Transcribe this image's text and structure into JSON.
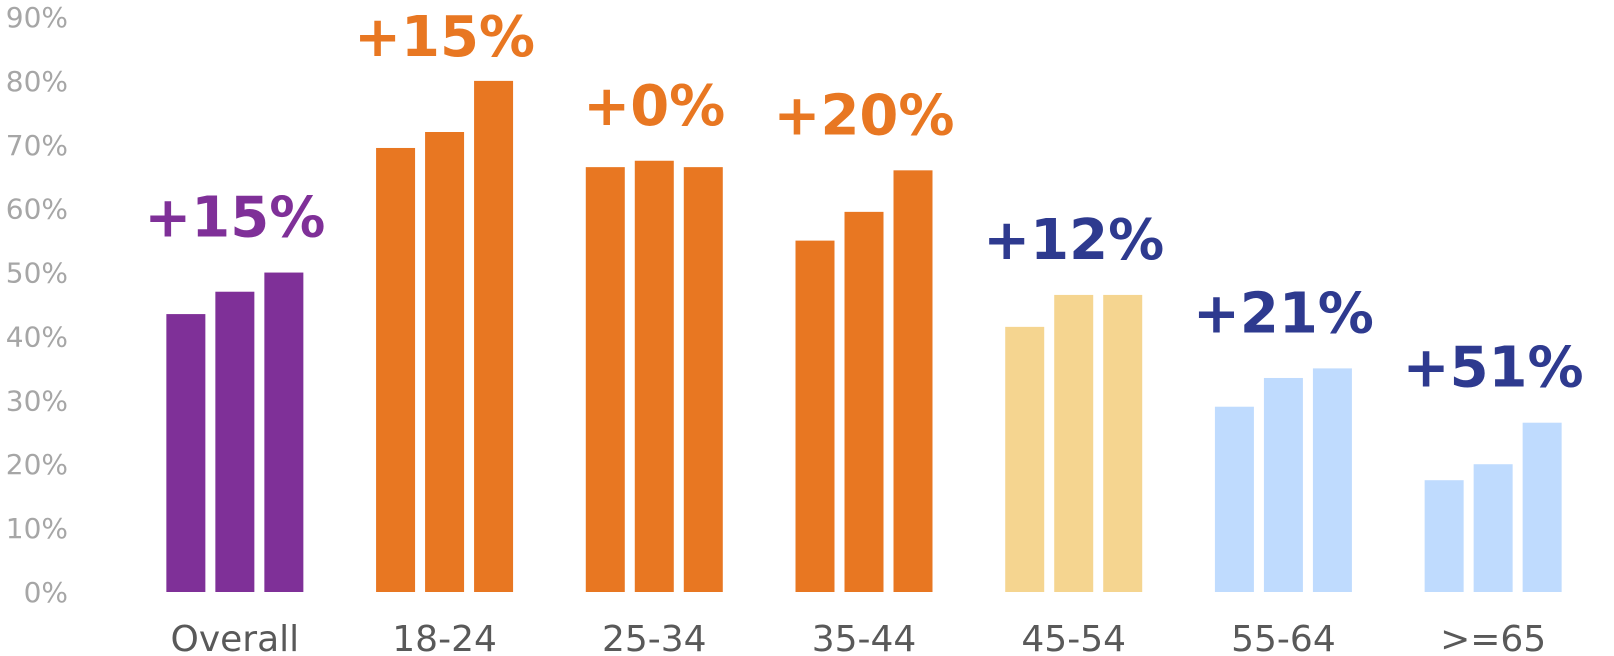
{
  "chart_data": {
    "type": "bar",
    "categories": [
      "Overall",
      "18-24",
      "25-34",
      "35-44",
      "45-54",
      "55-64",
      ">=65"
    ],
    "y_ticks": [
      "0%",
      "10%",
      "20%",
      "30%",
      "40%",
      "50%",
      "60%",
      "70%",
      "80%",
      "90%"
    ],
    "ylim": [
      0,
      90
    ],
    "grid": false,
    "legend": "none",
    "series_per_category": 3,
    "groups": [
      {
        "category": "Overall",
        "values": [
          43.5,
          47,
          50
        ],
        "annotation": "+15%",
        "bar_color": "#7f3098",
        "label_color": "#7f3098"
      },
      {
        "category": "18-24",
        "values": [
          69.5,
          72,
          80
        ],
        "annotation": "+15%",
        "bar_color": "#e87722",
        "label_color": "#e87722"
      },
      {
        "category": "25-34",
        "values": [
          66.5,
          67.5,
          66.5
        ],
        "annotation": "+0%",
        "bar_color": "#e87722",
        "label_color": "#e87722"
      },
      {
        "category": "35-44",
        "values": [
          55,
          59.5,
          66
        ],
        "annotation": "+20%",
        "bar_color": "#e87722",
        "label_color": "#e87722"
      },
      {
        "category": "45-54",
        "values": [
          41.5,
          46.5,
          46.5
        ],
        "annotation": "+12%",
        "bar_color": "#f5d590",
        "label_color": "#2e3a8f"
      },
      {
        "category": "55-64",
        "values": [
          29,
          33.5,
          35
        ],
        "annotation": "+21%",
        "bar_color": "#bfdbfe",
        "label_color": "#2e3a8f"
      },
      {
        "category": ">=65",
        "values": [
          17.5,
          20,
          26.5
        ],
        "annotation": "+51%",
        "bar_color": "#bfdbfe",
        "label_color": "#2e3a8f"
      }
    ],
    "colors": {
      "tick": "#a6a6a6",
      "category": "#595959"
    }
  }
}
